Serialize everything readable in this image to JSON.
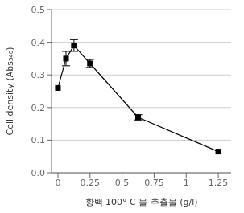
{
  "chart_data": {
    "type": "line",
    "xlabel": "황백 100°  C 물 추출물 (g/l)",
    "ylabel": "Cell density (Abs₅₄₀)",
    "x": [
      0.0,
      0.063,
      0.125,
      0.25,
      0.625,
      1.25
    ],
    "values": [
      0.26,
      0.35,
      0.39,
      0.335,
      0.17,
      0.065
    ],
    "yerr": [
      0.0,
      0.022,
      0.018,
      0.012,
      0.008,
      0.0
    ],
    "xlim": [
      -0.05,
      1.35
    ],
    "ylim": [
      0,
      0.5
    ],
    "xticks": [
      0,
      0.25,
      0.5,
      0.75,
      1,
      1.25
    ],
    "yticks": [
      {
        "value": 0,
        "label": "0.0"
      },
      0.1,
      0.2,
      0.3,
      0.4,
      0.5
    ],
    "grid": "y",
    "marker": "square",
    "color": "#000000"
  }
}
